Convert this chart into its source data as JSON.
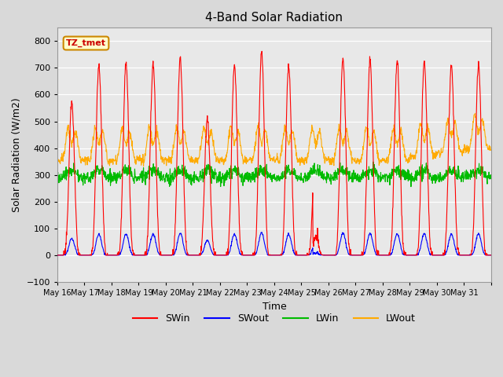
{
  "title": "4-Band Solar Radiation",
  "xlabel": "Time",
  "ylabel": "Solar Radiation (W/m2)",
  "ylim": [
    -100,
    850
  ],
  "yticks": [
    -100,
    0,
    100,
    200,
    300,
    400,
    500,
    600,
    700,
    800
  ],
  "xtick_labels": [
    "May 16",
    "May 17",
    "May 18",
    "May 19",
    "May 20",
    "May 21",
    "May 22",
    "May 23",
    "May 24",
    "May 25",
    "May 26",
    "May 27",
    "May 28",
    "May 29",
    "May 30",
    "May 31"
  ],
  "series": {
    "SWin": {
      "color": "#ff0000",
      "lw": 0.8
    },
    "SWout": {
      "color": "#0000ff",
      "lw": 0.8
    },
    "LWin": {
      "color": "#00bb00",
      "lw": 0.8
    },
    "LWout": {
      "color": "#ffaa00",
      "lw": 0.8
    }
  },
  "legend_entries": [
    "SWin",
    "SWout",
    "LWin",
    "LWout"
  ],
  "legend_colors": [
    "#ff0000",
    "#0000ff",
    "#00bb00",
    "#ffaa00"
  ],
  "annotation_text": "TZ_tmet",
  "annotation_bg": "#ffffcc",
  "annotation_border": "#cc8800",
  "fig_bg": "#d9d9d9",
  "plot_bg": "#e8e8e8",
  "n_days": 16,
  "dt_hours": 0.25
}
